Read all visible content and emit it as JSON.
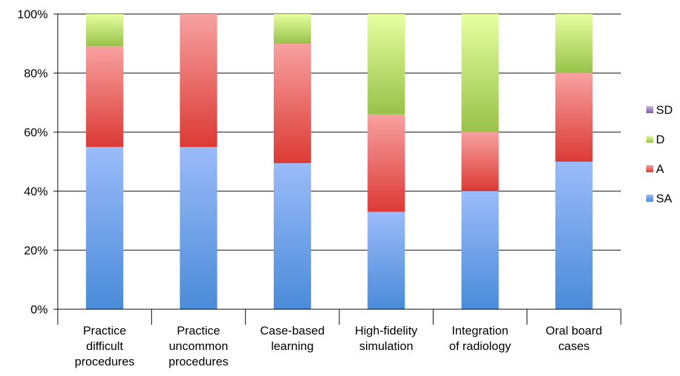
{
  "chart_data": {
    "type": "bar",
    "stacked": true,
    "percent": true,
    "categories": [
      [
        "Practice",
        "difficult",
        "procedures"
      ],
      [
        "Practice",
        "uncommon",
        "procedures"
      ],
      [
        "Case-based",
        "learning"
      ],
      [
        "High-fidelity",
        "simulation"
      ],
      [
        "Integration",
        "of radiology"
      ],
      [
        "Oral board",
        "cases"
      ]
    ],
    "series": [
      {
        "name": "SA",
        "values": [
          55,
          55,
          49.5,
          33,
          40,
          50
        ]
      },
      {
        "name": "A",
        "values": [
          34,
          45,
          40.5,
          33,
          20,
          30
        ]
      },
      {
        "name": "D",
        "values": [
          11,
          0,
          10,
          34,
          40,
          20
        ]
      },
      {
        "name": "SD",
        "values": [
          0,
          0,
          0,
          0,
          0,
          0
        ]
      }
    ],
    "yticks": [
      "0%",
      "20%",
      "40%",
      "60%",
      "80%",
      "100%"
    ],
    "ylim": [
      0,
      100
    ],
    "legend_order": [
      "SD",
      "D",
      "A",
      "SA"
    ],
    "legend_position": "right",
    "grid": true,
    "colors": {
      "SA": [
        "#9bbbf9",
        "#4a8bd9"
      ],
      "A": [
        "#f7a1a0",
        "#dc3a35"
      ],
      "D": [
        "#e6ffa0",
        "#98c24a"
      ],
      "SD": [
        "#c7b4dd",
        "#7e5e9e"
      ]
    }
  }
}
